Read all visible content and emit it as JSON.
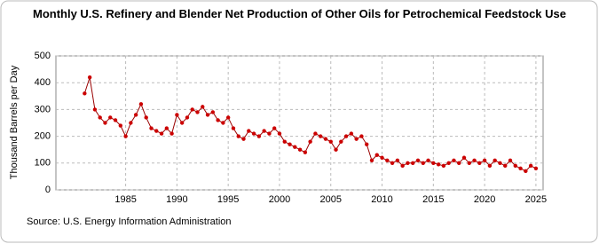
{
  "chart_data": {
    "type": "line",
    "title": "Monthly U.S. Refinery and Blender Net Production of Other Oils for Petrochemical Feedstock Use",
    "y_label": "Thousand Barrels per Day",
    "source": "Source: U.S. Energy Information Administration",
    "x": [
      1981,
      1981.5,
      1982,
      1982.5,
      1983,
      1983.5,
      1984,
      1984.5,
      1985,
      1985.5,
      1986,
      1986.5,
      1987,
      1987.5,
      1988,
      1988.5,
      1989,
      1989.5,
      1990,
      1990.5,
      1991,
      1991.5,
      1992,
      1992.5,
      1993,
      1993.5,
      1994,
      1994.5,
      1995,
      1995.5,
      1996,
      1996.5,
      1997,
      1997.5,
      1998,
      1998.5,
      1999,
      1999.5,
      2000,
      2000.5,
      2001,
      2001.5,
      2002,
      2002.5,
      2003,
      2003.5,
      2004,
      2004.5,
      2005,
      2005.5,
      2006,
      2006.5,
      2007,
      2007.5,
      2008,
      2008.5,
      2009,
      2009.5,
      2010,
      2010.5,
      2011,
      2011.5,
      2012,
      2012.5,
      2013,
      2013.5,
      2014,
      2014.5,
      2015,
      2015.5,
      2016,
      2016.5,
      2017,
      2017.5,
      2018,
      2018.5,
      2019,
      2019.5,
      2020,
      2020.5,
      2021,
      2021.5,
      2022,
      2022.5,
      2023,
      2023.5,
      2024,
      2024.5,
      2025
    ],
    "series": [
      {
        "name": "Other Oils for Petrochemical Feedstock Use",
        "color": "#cc0000",
        "values": [
          360,
          420,
          300,
          270,
          250,
          270,
          260,
          240,
          200,
          250,
          280,
          320,
          270,
          230,
          220,
          210,
          230,
          210,
          280,
          250,
          270,
          300,
          290,
          310,
          280,
          290,
          260,
          250,
          270,
          230,
          200,
          190,
          220,
          210,
          200,
          220,
          210,
          230,
          210,
          180,
          170,
          160,
          150,
          140,
          180,
          210,
          200,
          190,
          180,
          150,
          180,
          200,
          210,
          190,
          200,
          170,
          110,
          130,
          120,
          110,
          100,
          110,
          90,
          100,
          100,
          110,
          100,
          110,
          100,
          95,
          90,
          100,
          110,
          100,
          120,
          100,
          110,
          100,
          110,
          90,
          110,
          100,
          90,
          110,
          90,
          80,
          70,
          90,
          80
        ]
      }
    ],
    "xlim": [
      1978.2,
      2025.7
    ],
    "xticks": [
      1985,
      1990,
      1995,
      2000,
      2005,
      2010,
      2015,
      2020,
      2025
    ],
    "ylim": [
      0,
      500
    ],
    "yticks": [
      0,
      100,
      200,
      300,
      400,
      500
    ],
    "grid": true
  }
}
